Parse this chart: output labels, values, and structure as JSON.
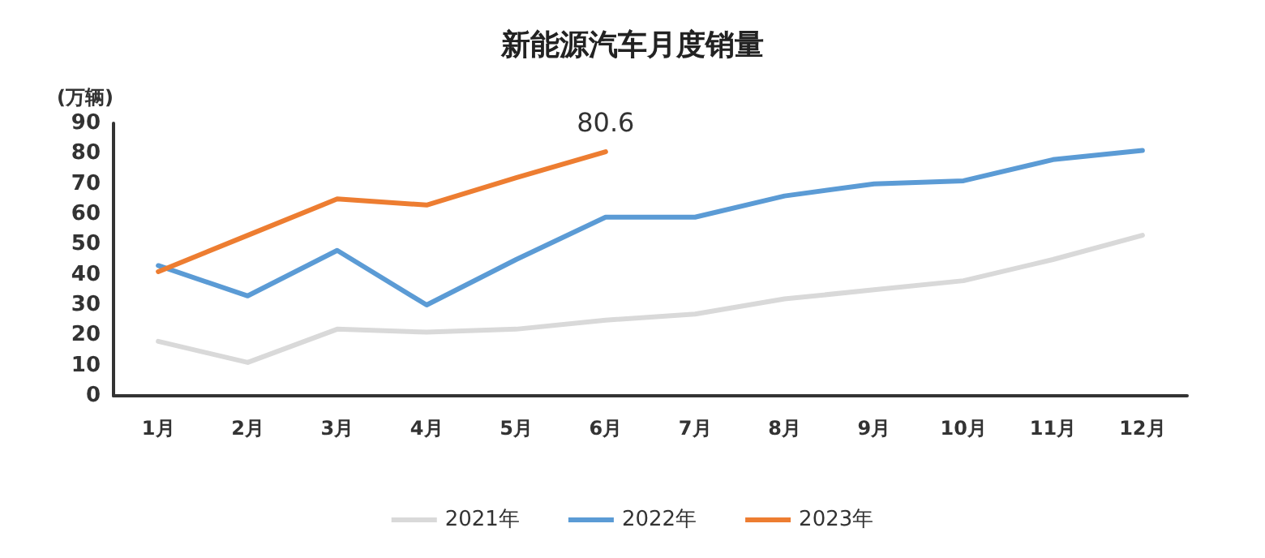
{
  "chart_data": {
    "type": "line",
    "title": "新能源汽车月度销量",
    "ylabel": "(万辆)",
    "categories": [
      "1月",
      "2月",
      "3月",
      "4月",
      "5月",
      "6月",
      "7月",
      "8月",
      "9月",
      "10月",
      "11月",
      "12月"
    ],
    "series": [
      {
        "name": "2021年",
        "color": "#d9d9d9",
        "values": [
          18,
          11,
          22,
          21,
          22,
          25,
          27,
          32,
          35,
          38,
          45,
          53
        ]
      },
      {
        "name": "2022年",
        "color": "#5b9bd5",
        "values": [
          43,
          33,
          48,
          30,
          45,
          59,
          59,
          66,
          70,
          71,
          78,
          81
        ]
      },
      {
        "name": "2023年",
        "color": "#ed7d31",
        "values": [
          41,
          53,
          65,
          63,
          72,
          80.6,
          null,
          null,
          null,
          null,
          null,
          null
        ],
        "value_labels": [
          null,
          null,
          null,
          null,
          null,
          "80.6",
          null,
          null,
          null,
          null,
          null,
          null
        ]
      }
    ],
    "ylim": [
      0,
      90
    ],
    "yticks": [
      0,
      10,
      20,
      30,
      40,
      50,
      60,
      70,
      80,
      90
    ],
    "grid": false,
    "legend": "bottom",
    "marker": "none",
    "line_style": "solid"
  }
}
